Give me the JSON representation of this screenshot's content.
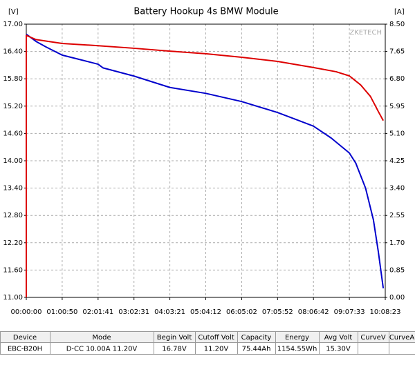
{
  "chart_data": {
    "type": "line",
    "title": "Battery Hookup 4s BMW Module",
    "y_label": "[V]",
    "y2_label": "[A]",
    "watermark": "ZKETECH",
    "xlim": [
      0,
      36503
    ],
    "xticks": [
      {
        "value": 0,
        "label": "00:00:00"
      },
      {
        "value": 3650,
        "label": "01:00:50"
      },
      {
        "value": 7301,
        "label": "02:01:41"
      },
      {
        "value": 10951,
        "label": "03:02:31"
      },
      {
        "value": 14601,
        "label": "04:03:21"
      },
      {
        "value": 18252,
        "label": "05:04:12"
      },
      {
        "value": 21902,
        "label": "06:05:02"
      },
      {
        "value": 25552,
        "label": "07:05:52"
      },
      {
        "value": 29202,
        "label": "08:06:42"
      },
      {
        "value": 32853,
        "label": "09:07:33"
      },
      {
        "value": 36503,
        "label": "10:08:23"
      }
    ],
    "ylim": [
      11,
      17
    ],
    "yticks": [
      {
        "value": 11,
        "label": "11.00"
      },
      {
        "value": 11.6,
        "label": "11.60"
      },
      {
        "value": 12.2,
        "label": "12.20"
      },
      {
        "value": 12.8,
        "label": "12.80"
      },
      {
        "value": 13.4,
        "label": "13.40"
      },
      {
        "value": 14,
        "label": "14.00"
      },
      {
        "value": 14.6,
        "label": "14.60"
      },
      {
        "value": 15.2,
        "label": "15.20"
      },
      {
        "value": 15.8,
        "label": "15.80"
      },
      {
        "value": 16.4,
        "label": "16.40"
      },
      {
        "value": 17,
        "label": "17.00"
      }
    ],
    "y2lim": [
      0,
      8.5
    ],
    "y2ticks": [
      {
        "value": 0,
        "label": "0.00"
      },
      {
        "value": 0.85,
        "label": "0.85"
      },
      {
        "value": 1.7,
        "label": "1.70"
      },
      {
        "value": 2.55,
        "label": "2.55"
      },
      {
        "value": 3.4,
        "label": "3.40"
      },
      {
        "value": 4.25,
        "label": "4.25"
      },
      {
        "value": 5.1,
        "label": "5.10"
      },
      {
        "value": 5.95,
        "label": "5.95"
      },
      {
        "value": 6.8,
        "label": "6.80"
      },
      {
        "value": 7.65,
        "label": "7.65"
      },
      {
        "value": 8.5,
        "label": "8.50"
      }
    ],
    "grid": true,
    "series": [
      {
        "color": "#0000cc",
        "axis": "y",
        "x": [
          0,
          1000,
          2000,
          3650,
          5500,
          7301,
          7800,
          8500,
          10951,
          14601,
          18252,
          21902,
          25552,
          27500,
          29202,
          31000,
          32853,
          33500,
          34500,
          35300,
          35800,
          36300
        ],
        "values": [
          16.78,
          16.62,
          16.5,
          16.32,
          16.22,
          16.12,
          16.04,
          16.0,
          15.86,
          15.61,
          15.48,
          15.3,
          15.06,
          14.9,
          14.76,
          14.5,
          14.17,
          13.95,
          13.4,
          12.7,
          12.0,
          11.2
        ]
      },
      {
        "color": "#dd0000",
        "axis": "y2",
        "x": [
          0,
          0,
          1000,
          3650,
          7301,
          10951,
          14601,
          18252,
          21902,
          25552,
          29202,
          31500,
          32853,
          34000,
          35000,
          35800,
          36300
        ],
        "values": [
          0,
          8.15,
          8.02,
          7.9,
          7.83,
          7.75,
          7.66,
          7.58,
          7.47,
          7.34,
          7.15,
          7.02,
          6.89,
          6.61,
          6.25,
          5.78,
          5.5
        ]
      }
    ]
  },
  "table": {
    "columns": [
      "Device",
      "Mode",
      "Begin Volt",
      "Cutoff Volt",
      "Capacity",
      "Energy",
      "Avg Volt",
      "CurveV",
      "CurveA"
    ],
    "rows": [
      [
        "EBC-B20H",
        "D-CC 10.00A 11.20V",
        "16.78V",
        "11.20V",
        "75.44Ah",
        "1154.55Wh",
        "15.30V"
      ]
    ]
  }
}
